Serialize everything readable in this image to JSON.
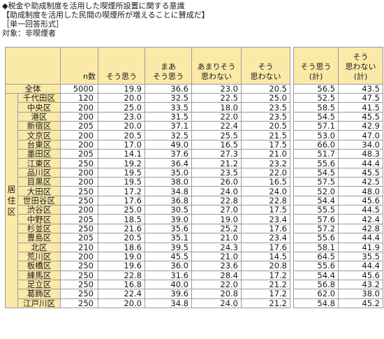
{
  "header": {
    "line1": "◆税金や助成制度を活用した喫煙所設置に関する意識",
    "line2": "【助成制度を活用した民間の喫煙所が増えることに賛成だ】",
    "line3": "［単一回答形式］",
    "line4": "対象：非喫煙者"
  },
  "table": {
    "columns": [
      "n数",
      "そう思う",
      "まあ\nそう思う",
      "あまりそう\n思わない",
      "そう\n思わない"
    ],
    "summary_columns": [
      "そう思う\n(計)",
      "そう\n思わない\n(計)"
    ],
    "group_label": "居\n住\n区",
    "rows": [
      {
        "label": "全体",
        "n": "5000",
        "v": [
          "19.9",
          "36.6",
          "23.0",
          "20.5"
        ],
        "s": [
          "56.5",
          "43.5"
        ]
      },
      {
        "label": "千代田区",
        "n": "120",
        "v": [
          "20.0",
          "32.5",
          "22.5",
          "25.0"
        ],
        "s": [
          "52.5",
          "47.5"
        ]
      },
      {
        "label": "中央区",
        "n": "200",
        "v": [
          "25.0",
          "33.5",
          "18.0",
          "23.5"
        ],
        "s": [
          "58.5",
          "41.5"
        ]
      },
      {
        "label": "港区",
        "n": "200",
        "v": [
          "23.0",
          "31.5",
          "22.0",
          "23.5"
        ],
        "s": [
          "54.5",
          "45.5"
        ]
      },
      {
        "label": "新宿区",
        "n": "205",
        "v": [
          "20.0",
          "37.1",
          "22.4",
          "20.5"
        ],
        "s": [
          "57.1",
          "42.9"
        ]
      },
      {
        "label": "文京区",
        "n": "200",
        "v": [
          "20.5",
          "32.5",
          "25.5",
          "21.5"
        ],
        "s": [
          "53.0",
          "47.0"
        ]
      },
      {
        "label": "台東区",
        "n": "200",
        "v": [
          "17.0",
          "49.0",
          "16.5",
          "17.5"
        ],
        "s": [
          "66.0",
          "34.0"
        ]
      },
      {
        "label": "墨田区",
        "n": "205",
        "v": [
          "14.1",
          "37.6",
          "27.3",
          "21.0"
        ],
        "s": [
          "51.7",
          "48.3"
        ]
      },
      {
        "label": "江東区",
        "n": "250",
        "v": [
          "19.2",
          "36.4",
          "21.2",
          "23.2"
        ],
        "s": [
          "55.6",
          "44.4"
        ]
      },
      {
        "label": "品川区",
        "n": "200",
        "v": [
          "19.5",
          "35.0",
          "23.5",
          "22.0"
        ],
        "s": [
          "54.5",
          "45.5"
        ]
      },
      {
        "label": "目黒区",
        "n": "200",
        "v": [
          "19.5",
          "38.0",
          "26.0",
          "16.5"
        ],
        "s": [
          "57.5",
          "42.5"
        ]
      },
      {
        "label": "大田区",
        "n": "250",
        "v": [
          "17.2",
          "34.8",
          "24.0",
          "24.0"
        ],
        "s": [
          "52.0",
          "48.0"
        ]
      },
      {
        "label": "世田谷区",
        "n": "250",
        "v": [
          "17.6",
          "36.8",
          "22.8",
          "22.8"
        ],
        "s": [
          "54.4",
          "45.6"
        ]
      },
      {
        "label": "渋谷区",
        "n": "200",
        "v": [
          "25.0",
          "30.5",
          "27.0",
          "17.5"
        ],
        "s": [
          "55.5",
          "44.5"
        ]
      },
      {
        "label": "中野区",
        "n": "205",
        "v": [
          "18.5",
          "39.0",
          "19.0",
          "23.4"
        ],
        "s": [
          "57.6",
          "42.4"
        ]
      },
      {
        "label": "杉並区",
        "n": "250",
        "v": [
          "21.6",
          "35.6",
          "25.2",
          "17.6"
        ],
        "s": [
          "57.2",
          "42.8"
        ]
      },
      {
        "label": "豊島区",
        "n": "205",
        "v": [
          "20.5",
          "35.1",
          "21.0",
          "23.4"
        ],
        "s": [
          "55.6",
          "44.4"
        ]
      },
      {
        "label": "北区",
        "n": "210",
        "v": [
          "18.6",
          "39.5",
          "24.3",
          "17.6"
        ],
        "s": [
          "58.1",
          "41.9"
        ]
      },
      {
        "label": "荒川区",
        "n": "200",
        "v": [
          "19.0",
          "45.5",
          "21.0",
          "14.5"
        ],
        "s": [
          "64.5",
          "35.5"
        ]
      },
      {
        "label": "板橋区",
        "n": "250",
        "v": [
          "19.6",
          "36.0",
          "23.6",
          "20.8"
        ],
        "s": [
          "55.6",
          "44.4"
        ]
      },
      {
        "label": "練馬区",
        "n": "250",
        "v": [
          "22.8",
          "31.6",
          "28.4",
          "17.2"
        ],
        "s": [
          "54.4",
          "45.6"
        ]
      },
      {
        "label": "足立区",
        "n": "250",
        "v": [
          "16.8",
          "40.0",
          "22.0",
          "21.2"
        ],
        "s": [
          "56.8",
          "43.2"
        ]
      },
      {
        "label": "葛飾区",
        "n": "250",
        "v": [
          "22.4",
          "39.6",
          "20.8",
          "17.2"
        ],
        "s": [
          "62.0",
          "38.0"
        ]
      },
      {
        "label": "江戸川区",
        "n": "250",
        "v": [
          "20.0",
          "34.8",
          "24.0",
          "21.2"
        ],
        "s": [
          "54.8",
          "45.2"
        ]
      }
    ]
  }
}
